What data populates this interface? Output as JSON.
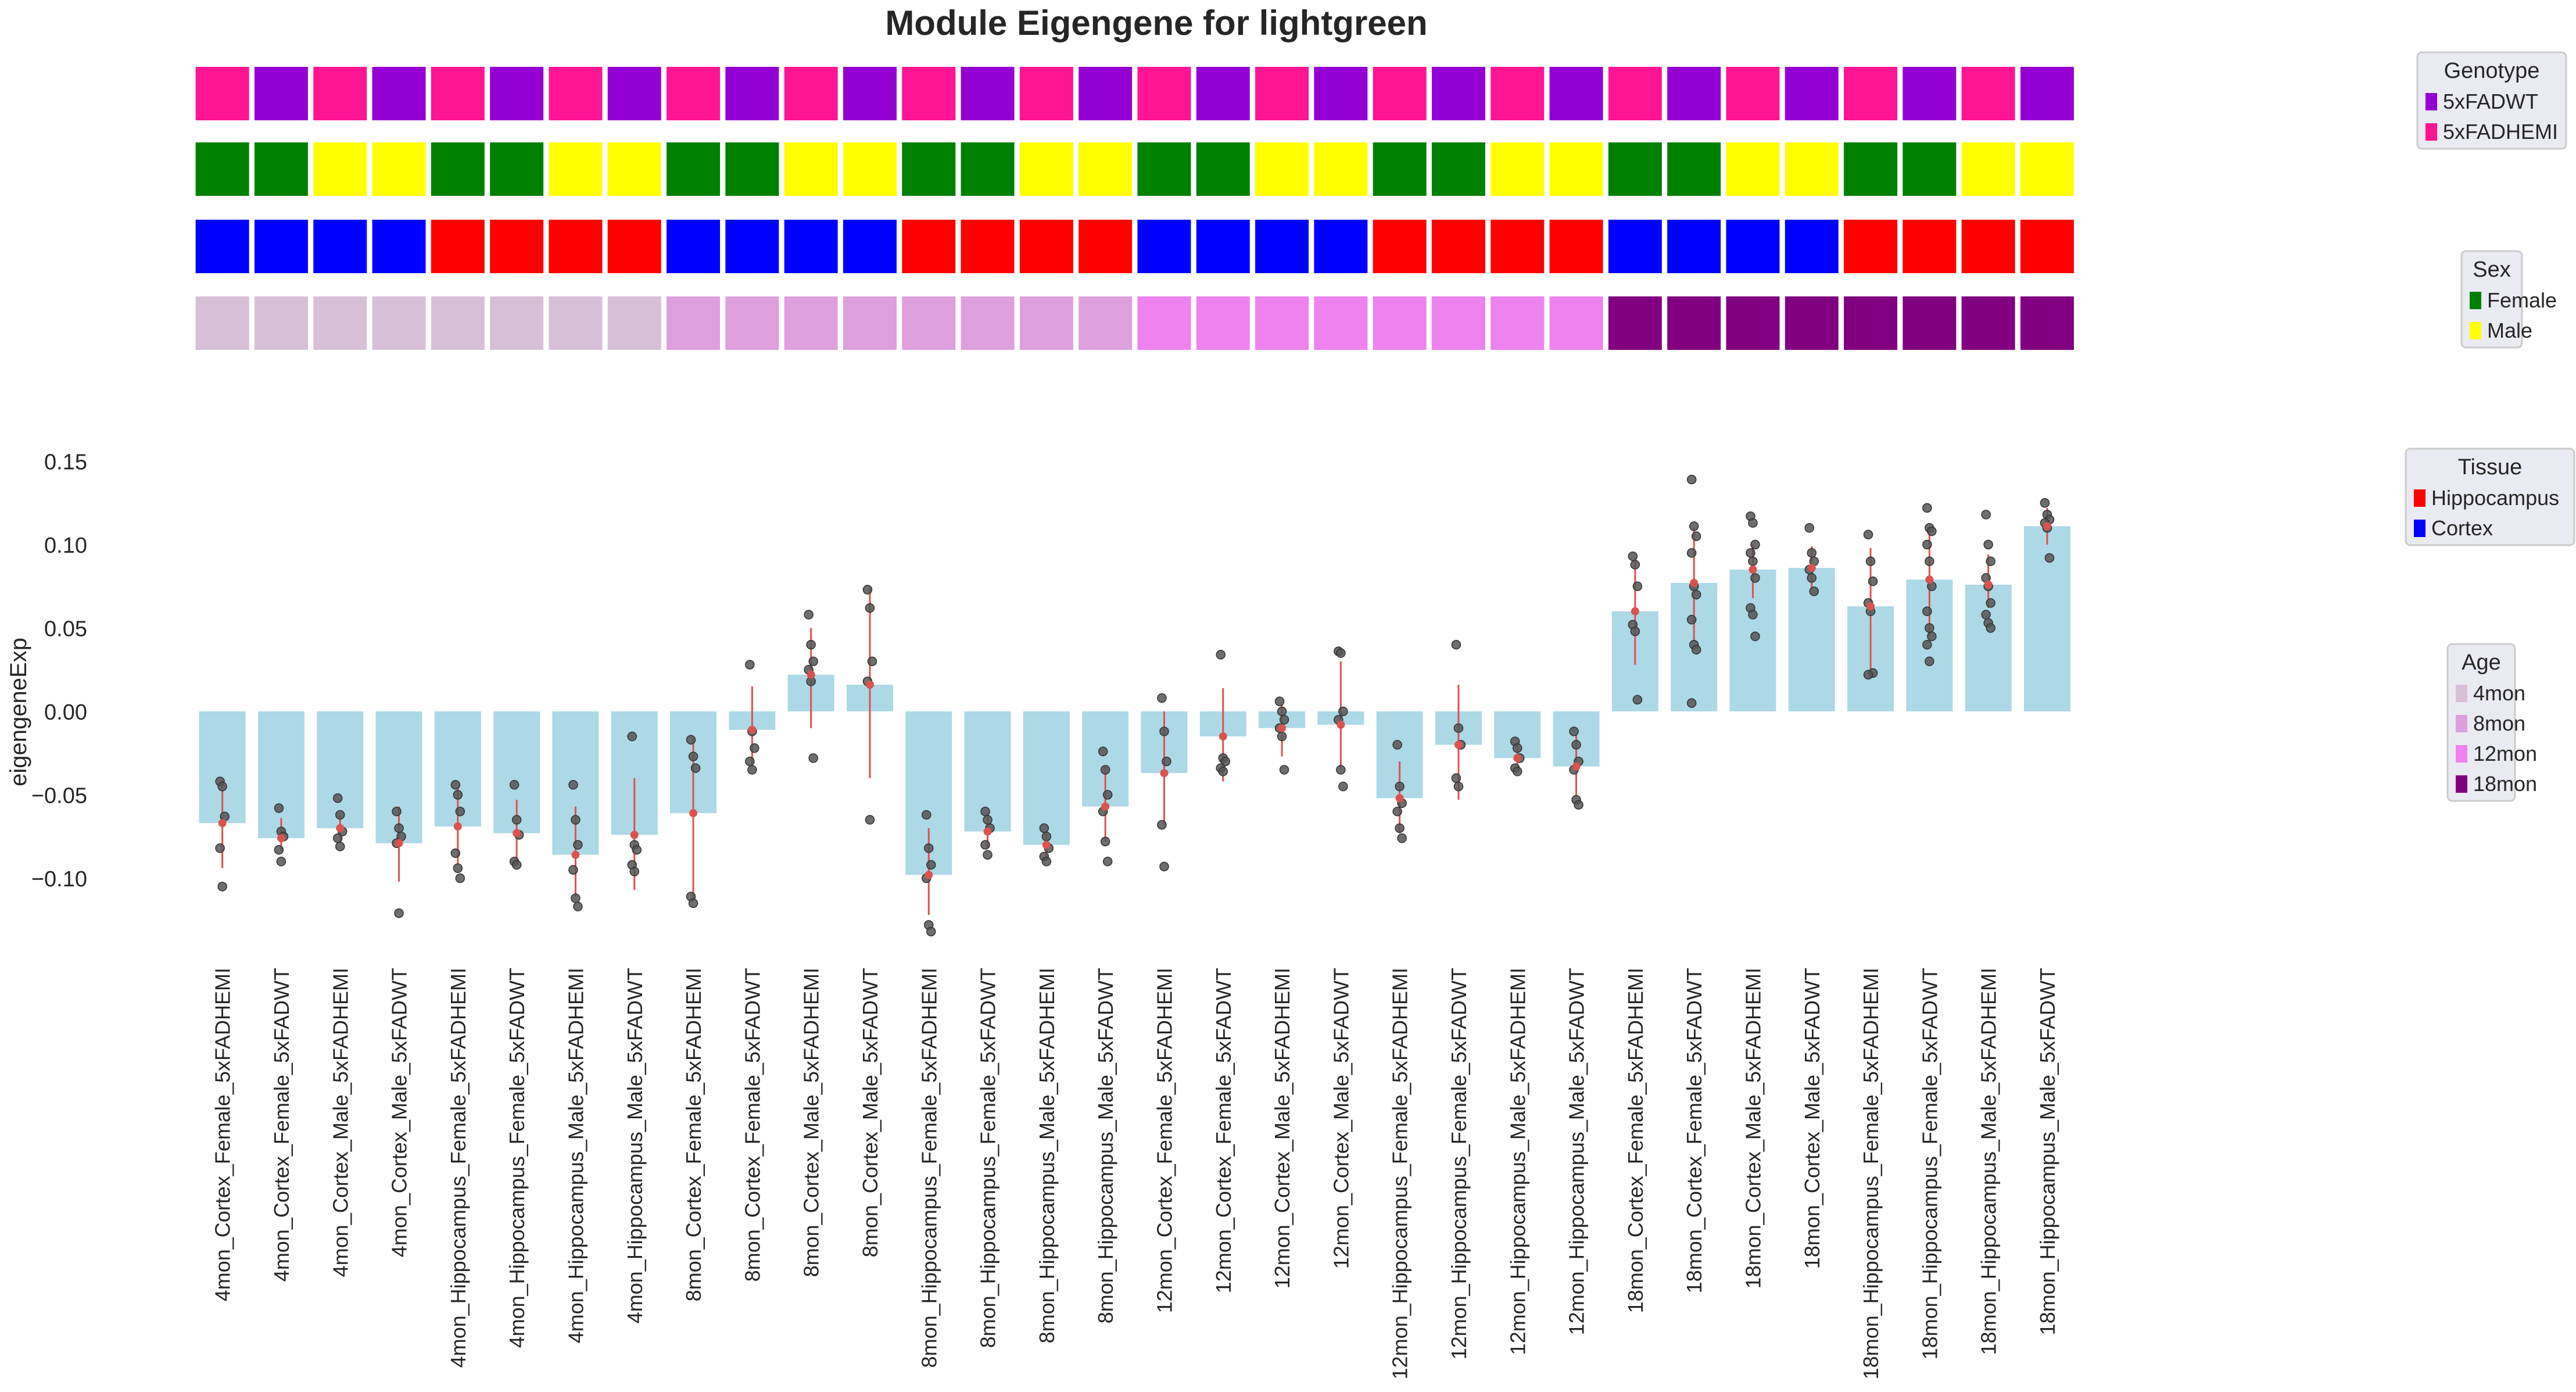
{
  "chart_data": {
    "type": "bar",
    "title": "Module Eigengene for lightgreen",
    "xlabel": "",
    "ylabel": "eigengeneExp",
    "ylim": [
      -0.135,
      0.16
    ],
    "yticks": [
      -0.1,
      -0.05,
      0.0,
      0.05,
      0.1,
      0.15
    ],
    "ytick_labels": [
      "−0.10",
      "−0.05",
      "0.00",
      "0.05",
      "0.10",
      "0.15"
    ],
    "grid": false,
    "bar_color": "#add8e6",
    "errorbar_color": "#d9534f",
    "point_color": "#555555",
    "categories": [
      "4mon_Cortex_Female_5xFADHEMI",
      "4mon_Cortex_Female_5xFADWT",
      "4mon_Cortex_Male_5xFADHEMI",
      "4mon_Cortex_Male_5xFADWT",
      "4mon_Hippocampus_Female_5xFADHEMI",
      "4mon_Hippocampus_Female_5xFADWT",
      "4mon_Hippocampus_Male_5xFADHEMI",
      "4mon_Hippocampus_Male_5xFADWT",
      "8mon_Cortex_Female_5xFADHEMI",
      "8mon_Cortex_Female_5xFADWT",
      "8mon_Cortex_Male_5xFADHEMI",
      "8mon_Cortex_Male_5xFADWT",
      "8mon_Hippocampus_Female_5xFADHEMI",
      "8mon_Hippocampus_Female_5xFADWT",
      "8mon_Hippocampus_Male_5xFADHEMI",
      "8mon_Hippocampus_Male_5xFADWT",
      "12mon_Cortex_Female_5xFADHEMI",
      "12mon_Cortex_Female_5xFADWT",
      "12mon_Cortex_Male_5xFADHEMI",
      "12mon_Cortex_Male_5xFADWT",
      "12mon_Hippocampus_Female_5xFADHEMI",
      "12mon_Hippocampus_Female_5xFADWT",
      "12mon_Hippocampus_Male_5xFADHEMI",
      "12mon_Hippocampus_Male_5xFADWT",
      "18mon_Cortex_Female_5xFADHEMI",
      "18mon_Cortex_Female_5xFADWT",
      "18mon_Cortex_Male_5xFADHEMI",
      "18mon_Cortex_Male_5xFADWT",
      "18mon_Hippocampus_Female_5xFADHEMI",
      "18mon_Hippocampus_Female_5xFADWT",
      "18mon_Hippocampus_Male_5xFADHEMI",
      "18mon_Hippocampus_Male_5xFADWT"
    ],
    "values": [
      -0.067,
      -0.076,
      -0.07,
      -0.079,
      -0.069,
      -0.073,
      -0.086,
      -0.074,
      -0.061,
      -0.011,
      0.022,
      0.016,
      -0.098,
      -0.072,
      -0.08,
      -0.057,
      -0.037,
      -0.015,
      -0.01,
      -0.008,
      -0.052,
      -0.02,
      -0.028,
      -0.033,
      0.06,
      0.077,
      0.085,
      0.086,
      0.063,
      0.079,
      0.076,
      0.111
    ],
    "error_low": [
      -0.094,
      -0.084,
      -0.078,
      -0.102,
      -0.092,
      -0.091,
      -0.111,
      -0.107,
      -0.114,
      -0.033,
      -0.01,
      -0.04,
      -0.122,
      -0.082,
      -0.088,
      -0.078,
      -0.068,
      -0.042,
      -0.027,
      -0.035,
      -0.073,
      -0.053,
      -0.034,
      -0.051,
      0.028,
      0.042,
      0.068,
      0.074,
      0.025,
      0.045,
      0.062,
      0.1
    ],
    "error_high": [
      -0.041,
      -0.064,
      -0.062,
      -0.057,
      -0.046,
      -0.053,
      -0.057,
      -0.04,
      -0.016,
      0.015,
      0.05,
      0.074,
      -0.07,
      -0.061,
      -0.072,
      -0.033,
      0.0,
      0.014,
      0.004,
      0.03,
      -0.03,
      0.016,
      -0.02,
      -0.014,
      0.092,
      0.11,
      0.1,
      0.099,
      0.098,
      0.11,
      0.094,
      0.122
    ],
    "points": [
      [
        -0.042,
        -0.045,
        -0.063,
        -0.082,
        -0.105
      ],
      [
        -0.058,
        -0.072,
        -0.075,
        -0.083,
        -0.09
      ],
      [
        -0.052,
        -0.062,
        -0.072,
        -0.076,
        -0.081
      ],
      [
        -0.06,
        -0.07,
        -0.075,
        -0.079,
        -0.121
      ],
      [
        -0.044,
        -0.05,
        -0.06,
        -0.085,
        -0.094,
        -0.1
      ],
      [
        -0.044,
        -0.065,
        -0.074,
        -0.09,
        -0.092
      ],
      [
        -0.044,
        -0.065,
        -0.08,
        -0.095,
        -0.112,
        -0.117
      ],
      [
        -0.015,
        -0.08,
        -0.083,
        -0.092,
        -0.096
      ],
      [
        -0.017,
        -0.027,
        -0.034,
        -0.111,
        -0.115
      ],
      [
        0.028,
        -0.012,
        -0.022,
        -0.03,
        -0.035
      ],
      [
        0.058,
        0.04,
        0.03,
        0.025,
        0.018,
        -0.028
      ],
      [
        0.073,
        0.062,
        0.03,
        0.018,
        -0.065
      ],
      [
        -0.062,
        -0.082,
        -0.092,
        -0.1,
        -0.128,
        -0.132
      ],
      [
        -0.06,
        -0.065,
        -0.07,
        -0.08,
        -0.086
      ],
      [
        -0.07,
        -0.075,
        -0.082,
        -0.087,
        -0.09
      ],
      [
        -0.024,
        -0.035,
        -0.05,
        -0.06,
        -0.078,
        -0.09
      ],
      [
        0.008,
        -0.012,
        -0.03,
        -0.068,
        -0.093
      ],
      [
        0.034,
        -0.028,
        -0.03,
        -0.034,
        -0.036
      ],
      [
        0.006,
        0.0,
        -0.005,
        -0.01,
        -0.015,
        -0.035
      ],
      [
        0.036,
        0.035,
        0.0,
        -0.005,
        -0.035,
        -0.045
      ],
      [
        -0.02,
        -0.045,
        -0.055,
        -0.06,
        -0.07,
        -0.076
      ],
      [
        0.04,
        -0.01,
        -0.02,
        -0.04,
        -0.045
      ],
      [
        -0.018,
        -0.022,
        -0.028,
        -0.034,
        -0.036
      ],
      [
        -0.012,
        -0.02,
        -0.03,
        -0.035,
        -0.053,
        -0.056
      ],
      [
        0.093,
        0.088,
        0.075,
        0.052,
        0.048,
        0.007
      ],
      [
        0.139,
        0.111,
        0.105,
        0.095,
        0.075,
        0.07,
        0.055,
        0.04,
        0.037,
        0.005
      ],
      [
        0.117,
        0.113,
        0.1,
        0.095,
        0.09,
        0.08,
        0.062,
        0.058,
        0.045
      ],
      [
        0.11,
        0.095,
        0.09,
        0.085,
        0.08,
        0.072
      ],
      [
        0.106,
        0.09,
        0.078,
        0.065,
        0.06,
        0.023,
        0.022
      ],
      [
        0.122,
        0.11,
        0.108,
        0.1,
        0.09,
        0.075,
        0.06,
        0.05,
        0.045,
        0.04,
        0.03
      ],
      [
        0.118,
        0.1,
        0.09,
        0.08,
        0.075,
        0.065,
        0.058,
        0.053,
        0.05
      ],
      [
        0.125,
        0.118,
        0.115,
        0.113,
        0.11,
        0.092
      ]
    ],
    "annotation_rows": [
      {
        "name": "Genotype",
        "colors": [
          "#ff1493",
          "#9400d3",
          "#ff1493",
          "#9400d3",
          "#ff1493",
          "#9400d3",
          "#ff1493",
          "#9400d3",
          "#ff1493",
          "#9400d3",
          "#ff1493",
          "#9400d3",
          "#ff1493",
          "#9400d3",
          "#ff1493",
          "#9400d3",
          "#ff1493",
          "#9400d3",
          "#ff1493",
          "#9400d3",
          "#ff1493",
          "#9400d3",
          "#ff1493",
          "#9400d3",
          "#ff1493",
          "#9400d3",
          "#ff1493",
          "#9400d3",
          "#ff1493",
          "#9400d3",
          "#ff1493",
          "#9400d3"
        ]
      },
      {
        "name": "Sex",
        "colors": [
          "#008000",
          "#008000",
          "#ffff00",
          "#ffff00",
          "#008000",
          "#008000",
          "#ffff00",
          "#ffff00",
          "#008000",
          "#008000",
          "#ffff00",
          "#ffff00",
          "#008000",
          "#008000",
          "#ffff00",
          "#ffff00",
          "#008000",
          "#008000",
          "#ffff00",
          "#ffff00",
          "#008000",
          "#008000",
          "#ffff00",
          "#ffff00",
          "#008000",
          "#008000",
          "#ffff00",
          "#ffff00",
          "#008000",
          "#008000",
          "#ffff00",
          "#ffff00"
        ]
      },
      {
        "name": "Tissue",
        "colors": [
          "#0000ff",
          "#0000ff",
          "#0000ff",
          "#0000ff",
          "#ff0000",
          "#ff0000",
          "#ff0000",
          "#ff0000",
          "#0000ff",
          "#0000ff",
          "#0000ff",
          "#0000ff",
          "#ff0000",
          "#ff0000",
          "#ff0000",
          "#ff0000",
          "#0000ff",
          "#0000ff",
          "#0000ff",
          "#0000ff",
          "#ff0000",
          "#ff0000",
          "#ff0000",
          "#ff0000",
          "#0000ff",
          "#0000ff",
          "#0000ff",
          "#0000ff",
          "#ff0000",
          "#ff0000",
          "#ff0000",
          "#ff0000"
        ]
      },
      {
        "name": "Age",
        "colors": [
          "#d8bfd8",
          "#d8bfd8",
          "#d8bfd8",
          "#d8bfd8",
          "#d8bfd8",
          "#d8bfd8",
          "#d8bfd8",
          "#d8bfd8",
          "#dda0dd",
          "#dda0dd",
          "#dda0dd",
          "#dda0dd",
          "#dda0dd",
          "#dda0dd",
          "#dda0dd",
          "#dda0dd",
          "#ee82ee",
          "#ee82ee",
          "#ee82ee",
          "#ee82ee",
          "#ee82ee",
          "#ee82ee",
          "#ee82ee",
          "#ee82ee",
          "#800080",
          "#800080",
          "#800080",
          "#800080",
          "#800080",
          "#800080",
          "#800080",
          "#800080"
        ]
      }
    ],
    "legends": [
      {
        "title": "Genotype",
        "entries": [
          {
            "label": "5xFADWT",
            "color": "#9400d3"
          },
          {
            "label": "5xFADHEMI",
            "color": "#ff1493"
          }
        ]
      },
      {
        "title": "Sex",
        "entries": [
          {
            "label": "Female",
            "color": "#008000"
          },
          {
            "label": "Male",
            "color": "#ffff00"
          }
        ]
      },
      {
        "title": "Tissue",
        "entries": [
          {
            "label": "Hippocampus",
            "color": "#ff0000"
          },
          {
            "label": "Cortex",
            "color": "#0000ff"
          }
        ]
      },
      {
        "title": "Age",
        "entries": [
          {
            "label": "4mon",
            "color": "#d8bfd8"
          },
          {
            "label": "8mon",
            "color": "#dda0dd"
          },
          {
            "label": "12mon",
            "color": "#ee82ee"
          },
          {
            "label": "18mon",
            "color": "#800080"
          }
        ]
      }
    ],
    "legend_placement": "right"
  }
}
